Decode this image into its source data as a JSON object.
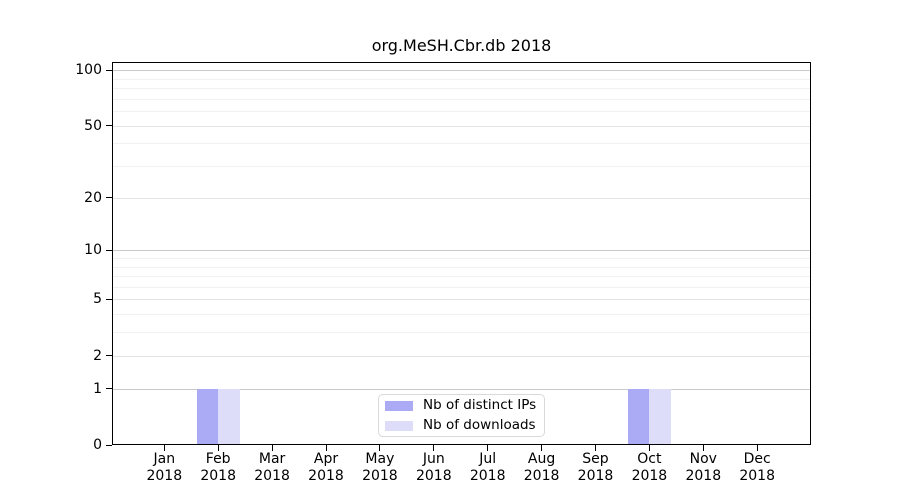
{
  "chart_data": {
    "type": "bar",
    "title": "org.MeSH.Cbr.db 2018",
    "xlabel": "",
    "ylabel": "",
    "y_scale": "log1p",
    "ylim": [
      0,
      111
    ],
    "grid": "horizontal",
    "legend_position": "lower center",
    "categories": [
      "Jan 2018",
      "Feb 2018",
      "Mar 2018",
      "Apr 2018",
      "May 2018",
      "Jun 2018",
      "Jul 2018",
      "Aug 2018",
      "Sep 2018",
      "Oct 2018",
      "Nov 2018",
      "Dec 2018"
    ],
    "series": [
      {
        "name": "Nb of distinct IPs",
        "color": "#aaaaf5",
        "values": [
          0,
          1,
          0,
          0,
          0,
          0,
          0,
          0,
          0,
          1,
          0,
          0
        ]
      },
      {
        "name": "Nb of downloads",
        "color": "#ddddfa",
        "values": [
          0,
          1,
          0,
          0,
          0,
          0,
          0,
          0,
          0,
          1,
          0,
          0
        ]
      }
    ],
    "yticks": [
      0,
      1,
      2,
      5,
      10,
      20,
      50,
      100
    ],
    "gridlines": {
      "major": [
        1,
        10,
        100
      ],
      "mid": [
        2,
        5,
        20,
        50
      ],
      "minor": [
        3,
        4,
        6,
        7,
        8,
        9,
        30,
        40,
        60,
        70,
        80,
        90
      ]
    },
    "colors": {
      "grid_major": "#c9c9c9",
      "grid_mid": "#e4e4e4",
      "grid_minor": "#f1f1f1",
      "axis": "#000000",
      "legend_border": "#d9d9d9",
      "background": "#ffffff"
    }
  }
}
